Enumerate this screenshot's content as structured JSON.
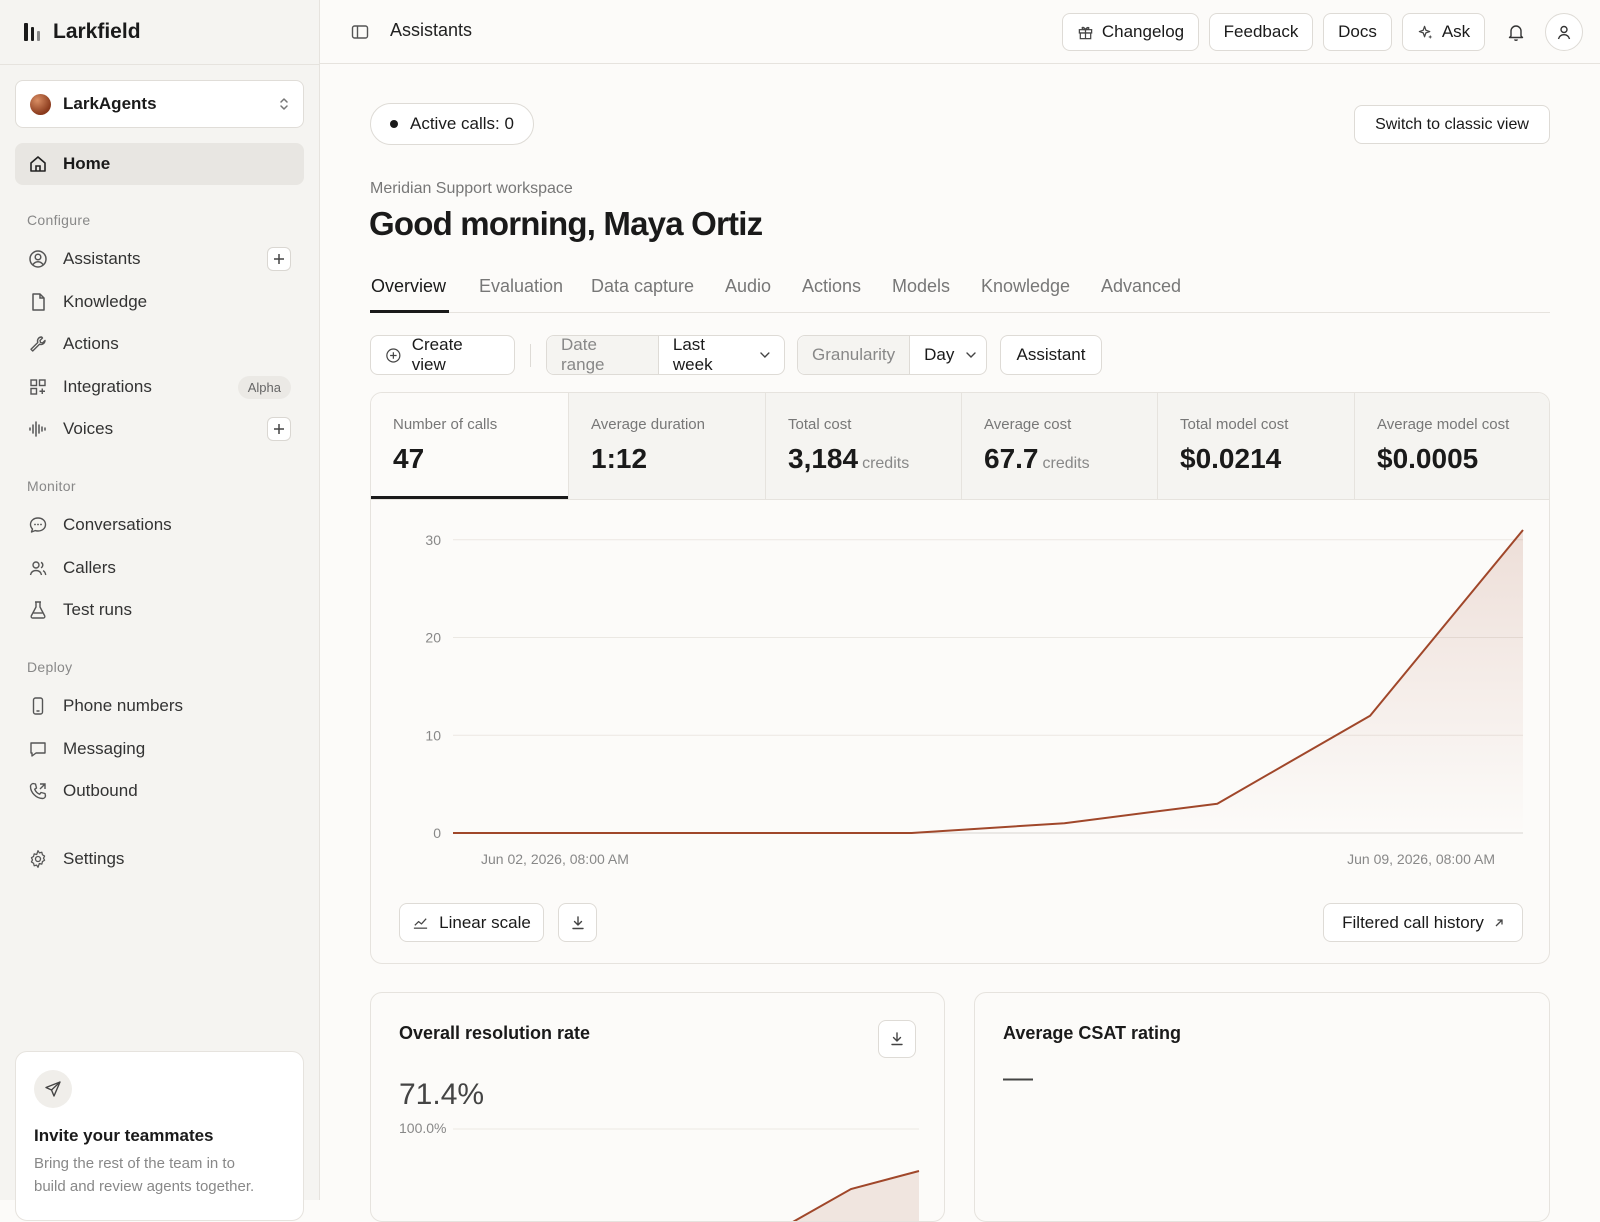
{
  "app": {
    "name": "Larkfield",
    "breadcrumb": "Assistants"
  },
  "workspace_switcher": {
    "name": "LarkAgents"
  },
  "sidebar": {
    "home": "Home",
    "sections": {
      "configure": "Configure",
      "monitor": "Monitor",
      "deploy": "Deploy"
    },
    "configure": [
      {
        "label": "Assistants",
        "icon": "user-circle-icon",
        "plus": true
      },
      {
        "label": "Knowledge",
        "icon": "file-icon"
      },
      {
        "label": "Actions",
        "icon": "wrench-icon"
      },
      {
        "label": "Integrations",
        "icon": "grid-icon",
        "badge": "Alpha"
      },
      {
        "label": "Voices",
        "icon": "audio-wave-icon",
        "plus": true
      }
    ],
    "monitor": [
      {
        "label": "Conversations",
        "icon": "chat-bubble-icon"
      },
      {
        "label": "Callers",
        "icon": "users-icon"
      },
      {
        "label": "Test runs",
        "icon": "flask-icon"
      }
    ],
    "deploy": [
      {
        "label": "Phone numbers",
        "icon": "phone-icon"
      },
      {
        "label": "Messaging",
        "icon": "message-icon"
      },
      {
        "label": "Outbound",
        "icon": "phone-outgoing-icon"
      }
    ],
    "settings": "Settings",
    "invite": {
      "title": "Invite your teammates",
      "line1": "Bring the rest of the team in to",
      "line2": "build and review agents together."
    }
  },
  "topbar": {
    "changelog": "Changelog",
    "feedback": "Feedback",
    "docs": "Docs",
    "ask": "Ask"
  },
  "status": {
    "active_calls": "Active calls: 0",
    "classic_view": "Switch to classic view"
  },
  "header": {
    "workspace": "Meridian Support workspace",
    "greeting": "Good morning, Maya Ortiz"
  },
  "tabs": [
    "Overview",
    "Evaluation",
    "Data capture",
    "Audio",
    "Actions",
    "Models",
    "Knowledge",
    "Advanced"
  ],
  "filters": {
    "create_view": "Create view",
    "date_range_label": "Date range",
    "date_range_value": "Last week",
    "granularity_label": "Granularity",
    "granularity_value": "Day",
    "assistant": "Assistant"
  },
  "metrics": [
    {
      "label": "Number of calls",
      "value": "47",
      "unit": ""
    },
    {
      "label": "Average duration",
      "value": "1:12",
      "unit": ""
    },
    {
      "label": "Total cost",
      "value": "3,184",
      "unit": "credits"
    },
    {
      "label": "Average cost",
      "value": "67.7",
      "unit": "credits"
    },
    {
      "label": "Total model cost",
      "value": "$0.0214",
      "unit": ""
    },
    {
      "label": "Average model cost",
      "value": "$0.0005",
      "unit": ""
    }
  ],
  "chart_data": {
    "type": "area",
    "x": [
      "Jun 02",
      "Jun 03",
      "Jun 04",
      "Jun 05",
      "Jun 06",
      "Jun 07",
      "Jun 08",
      "Jun 09"
    ],
    "x_tick_labels": [
      "Jun 02, 2026, 08:00 AM",
      "Jun 09, 2026, 08:00 AM"
    ],
    "y_ticks": [
      0,
      10,
      20,
      30
    ],
    "ylim": [
      0,
      31
    ],
    "values": [
      0,
      0,
      0,
      0,
      1,
      3,
      12,
      31
    ],
    "line_color": "#a0472a",
    "grid": true
  },
  "chart_controls": {
    "scale": "Linear scale",
    "history": "Filtered call history"
  },
  "resolution": {
    "title": "Overall resolution rate",
    "value": "71.4%",
    "axis_top": "100.0%"
  },
  "csat": {
    "title": "Average CSAT rating",
    "value": "—"
  }
}
